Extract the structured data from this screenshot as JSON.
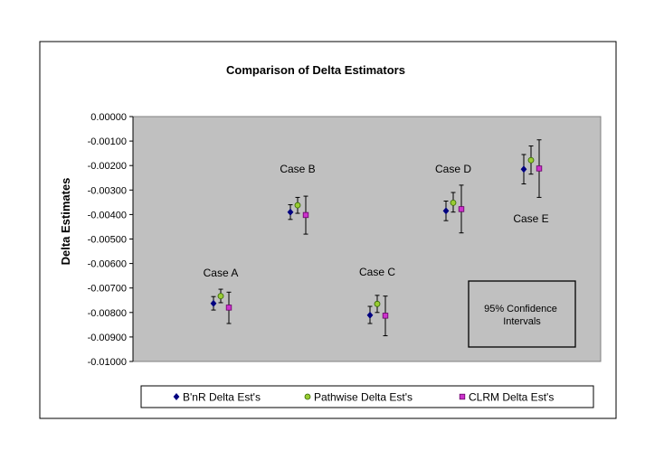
{
  "chart_data": {
    "type": "scatter",
    "title": "Comparison of Delta Estimators",
    "xlabel": "",
    "ylabel": "Delta Estimates",
    "ylim": [
      -0.01,
      0
    ],
    "y_ticks": [
      "0.00000",
      "-0.00100",
      "-0.00200",
      "-0.00300",
      "-0.00400",
      "-0.00500",
      "-0.00600",
      "-0.00700",
      "-0.00800",
      "-0.00900",
      "-0.01000"
    ],
    "grid": false,
    "plot_background": "#c0c0c0",
    "legend_position": "bottom",
    "categories": [
      "Case A",
      "Case B",
      "Case C",
      "Case D",
      "Case E"
    ],
    "series": [
      {
        "name": "B'nR Delta Est's",
        "marker": "diamond",
        "color": "#000080",
        "values": [
          -0.00763,
          -0.0039,
          -0.00811,
          -0.00385,
          -0.00215
        ],
        "lower": [
          -0.0079,
          -0.0042,
          -0.00845,
          -0.00425,
          -0.00275
        ],
        "upper": [
          -0.00735,
          -0.0036,
          -0.00775,
          -0.00345,
          -0.00155
        ]
      },
      {
        "name": "Pathwise Delta Est's",
        "marker": "circle",
        "color": "#99cc33",
        "values": [
          -0.00733,
          -0.00362,
          -0.00765,
          -0.00352,
          -0.00178
        ],
        "lower": [
          -0.0076,
          -0.00395,
          -0.008,
          -0.0039,
          -0.00235
        ],
        "upper": [
          -0.00705,
          -0.0033,
          -0.0073,
          -0.0031,
          -0.0012
        ]
      },
      {
        "name": "CLRM Delta Est's",
        "marker": "square",
        "color": "#cc33cc",
        "values": [
          -0.0078,
          -0.00402,
          -0.00813,
          -0.00378,
          -0.00212
        ],
        "lower": [
          -0.00845,
          -0.0048,
          -0.00895,
          -0.00475,
          -0.0033
        ],
        "upper": [
          -0.00717,
          -0.00325,
          -0.00733,
          -0.0028,
          -0.00095
        ]
      }
    ],
    "annotations": [
      "Case A",
      "Case B",
      "Case C",
      "Case D",
      "Case E"
    ],
    "note_box": "95% Confidence Intervals"
  }
}
